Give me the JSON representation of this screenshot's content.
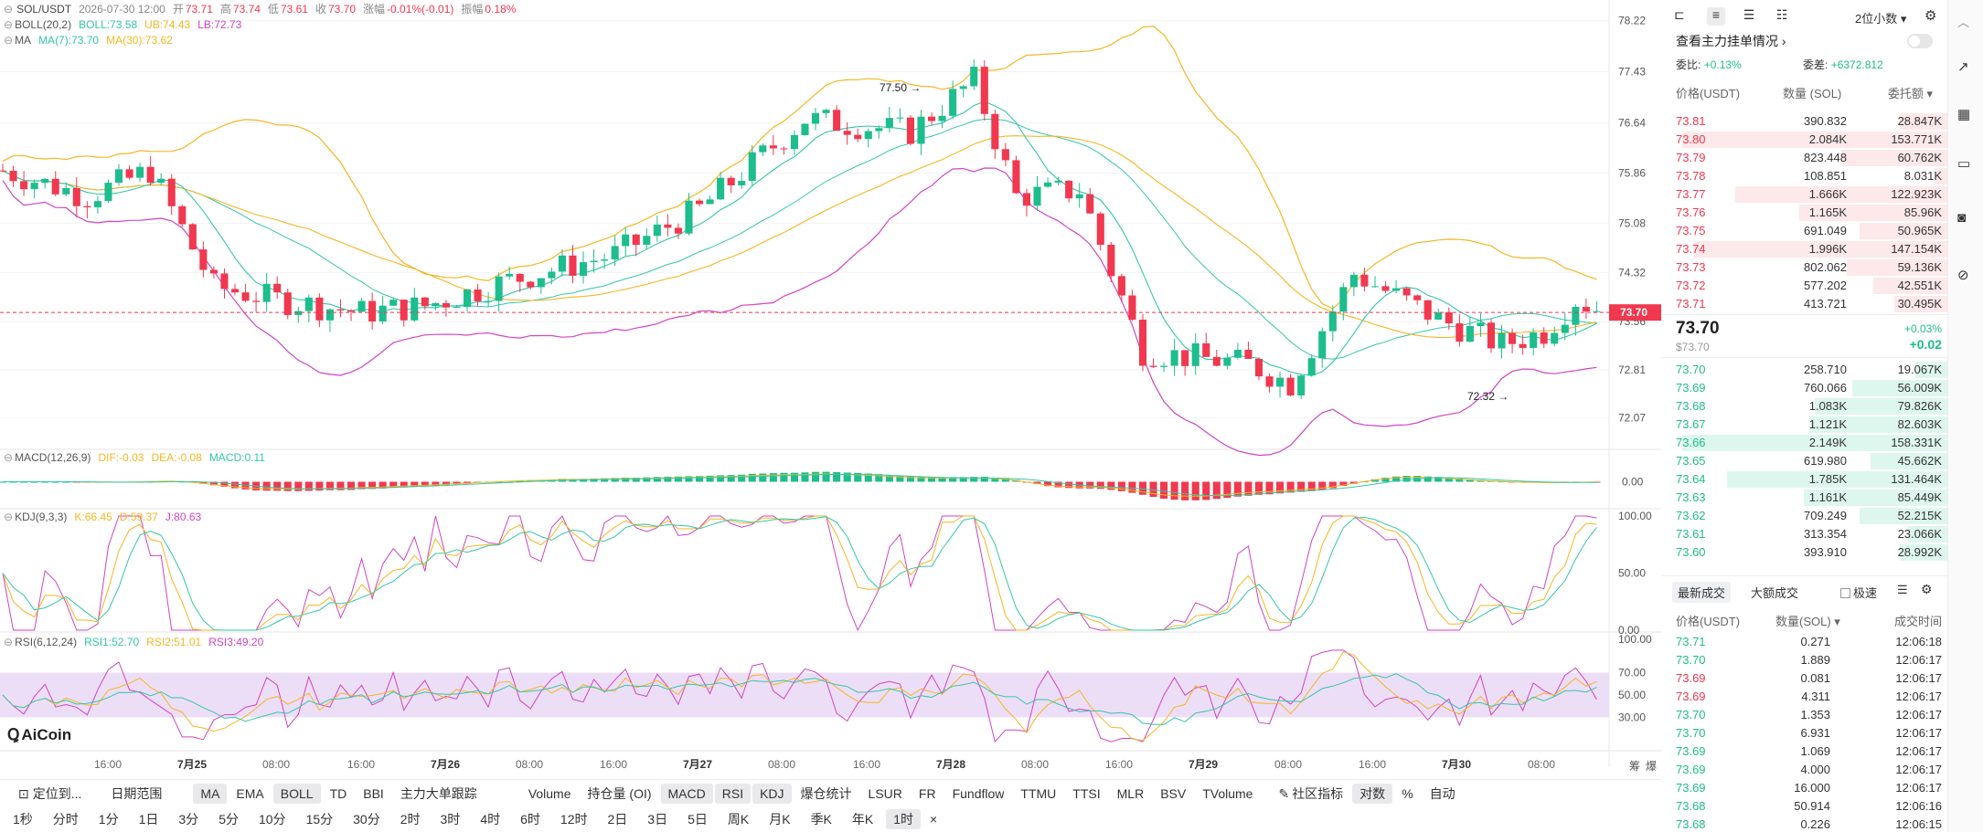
{
  "header": {
    "symbol": "SOL/USDT",
    "time": "2026-07-30 12:00",
    "open_label": "开",
    "open": "73.71",
    "high_label": "高",
    "high": "73.74",
    "low_label": "低",
    "low": "73.61",
    "close_label": "收",
    "close": "73.70",
    "chg_label": "涨幅",
    "chg": "-0.01%(-0.01)",
    "amp_label": "振幅",
    "amp": "0.18%"
  },
  "indicators": {
    "boll": {
      "name": "BOLL(20,2)",
      "boll": "BOLL:73.58",
      "ub": "UB:74.43",
      "lb": "LB:72.73"
    },
    "ma": {
      "name": "MA",
      "ma7": "MA(7):73.70",
      "ma30": "MA(30):73.62"
    },
    "macd": {
      "name": "MACD(12,26,9)",
      "dif": "DIF:-0.03",
      "dea": "DEA:-0.08",
      "macd": "MACD:0.11"
    },
    "kdj": {
      "name": "KDJ(9,3,3)",
      "k": "K:66.45",
      "d": "D:59.37",
      "j": "J:80.63"
    },
    "rsi": {
      "name": "RSI(6,12,24)",
      "r1": "RSI1:52.70",
      "r2": "RSI2:51.01",
      "r3": "RSI3:49.20"
    }
  },
  "price_axis": [
    "78.22",
    "77.43",
    "76.64",
    "75.86",
    "75.08",
    "74.32",
    "73.56",
    "72.81",
    "72.07"
  ],
  "current_price_tag": "73.70",
  "annotations": {
    "high": "77.50",
    "low": "72.32"
  },
  "macd_axis": [
    "0.00"
  ],
  "kdj_axis": [
    "100.00",
    "50.00",
    "0.00"
  ],
  "rsi_axis": [
    "100.00",
    "70.00",
    "50.00",
    "30.00"
  ],
  "time_axis": [
    "16:00",
    "7月25",
    "08:00",
    "16:00",
    "7月26",
    "08:00",
    "16:00",
    "7月27",
    "08:00",
    "16:00",
    "7月28",
    "08:00",
    "16:00",
    "7月29",
    "08:00",
    "16:00",
    "7月30",
    "08:00"
  ],
  "axis_corner": [
    "筹",
    "爆"
  ],
  "watermark": "AiCoin",
  "toolbar1": {
    "locate": "定位到...",
    "daterange": "日期范围",
    "items": [
      "MA",
      "EMA",
      "BOLL",
      "TD",
      "BBI",
      "主力大单跟踪",
      "Volume",
      "持仓量 (OI)",
      "MACD",
      "RSI",
      "KDJ",
      "爆仓统计",
      "LSUR",
      "FR",
      "Fundflow",
      "TTMU",
      "TTSI",
      "MLR",
      "BSV",
      "TVolume"
    ],
    "selected": [
      "MA",
      "BOLL",
      "MACD",
      "RSI",
      "KDJ"
    ],
    "community": "社区指标",
    "log": "对数",
    "pct": "%",
    "auto": "自动"
  },
  "toolbar2": {
    "items": [
      "1秒",
      "分时",
      "1分",
      "1日",
      "3分",
      "5分",
      "10分",
      "15分",
      "30分",
      "2时",
      "3时",
      "4时",
      "6时",
      "12时",
      "2日",
      "3日",
      "5日",
      "周K",
      "月K",
      "季K",
      "年K",
      "1时"
    ],
    "selected": "1时",
    "close": "×"
  },
  "orderbook": {
    "decimals": "2位小数",
    "main_orders": "查看主力挂单情况",
    "ratio_label": "委比:",
    "ratio": "+0.13%",
    "diff_label": "委差:",
    "diff": "+6372.812",
    "headers": [
      "价格(USDT)",
      "数量 (SOL)",
      "委托额"
    ],
    "asks": [
      [
        "73.81",
        "390.832",
        "28.847K",
        0.18
      ],
      [
        "73.80",
        "2.084K",
        "153.771K",
        1.0
      ],
      [
        "73.79",
        "823.448",
        "60.762K",
        0.4
      ],
      [
        "73.78",
        "108.851",
        "8.031K",
        0.05
      ],
      [
        "73.77",
        "1.666K",
        "122.923K",
        0.8
      ],
      [
        "73.76",
        "1.165K",
        "85.96K",
        0.56
      ],
      [
        "73.75",
        "691.049",
        "50.965K",
        0.33
      ],
      [
        "73.74",
        "1.996K",
        "147.154K",
        0.96
      ],
      [
        "73.73",
        "802.062",
        "59.136K",
        0.38
      ],
      [
        "73.72",
        "577.202",
        "42.551K",
        0.28
      ],
      [
        "73.71",
        "413.721",
        "30.495K",
        0.2
      ]
    ],
    "last_price": "73.70",
    "last_sub": "$73.70",
    "last_chg": "+0.03%",
    "last_abs": "+0.02",
    "bids": [
      [
        "73.70",
        "258.710",
        "19.067K",
        0.12
      ],
      [
        "73.69",
        "760.066",
        "56.009K",
        0.36
      ],
      [
        "73.68",
        "1.083K",
        "79.826K",
        0.5
      ],
      [
        "73.67",
        "1.121K",
        "82.603K",
        0.52
      ],
      [
        "73.66",
        "2.149K",
        "158.331K",
        1.0
      ],
      [
        "73.65",
        "619.980",
        "45.662K",
        0.29
      ],
      [
        "73.64",
        "1.785K",
        "131.464K",
        0.83
      ],
      [
        "73.63",
        "1.161K",
        "85.449K",
        0.54
      ],
      [
        "73.62",
        "709.249",
        "52.215K",
        0.33
      ],
      [
        "73.61",
        "313.354",
        "23.066K",
        0.15
      ],
      [
        "73.60",
        "393.910",
        "28.992K",
        0.18
      ]
    ]
  },
  "trades": {
    "tabs": [
      "最新成交",
      "大额成交"
    ],
    "speed_label": "极速",
    "headers": [
      "价格(USDT)",
      "数量(SOL)",
      "成交时间"
    ],
    "rows": [
      [
        "73.71",
        "0.271",
        "12:06:18",
        "g"
      ],
      [
        "73.70",
        "1.889",
        "12:06:17",
        "g"
      ],
      [
        "73.69",
        "0.081",
        "12:06:17",
        "r"
      ],
      [
        "73.69",
        "4.311",
        "12:06:17",
        "r"
      ],
      [
        "73.70",
        "1.353",
        "12:06:17",
        "g"
      ],
      [
        "73.70",
        "6.931",
        "12:06:17",
        "g"
      ],
      [
        "73.69",
        "1.069",
        "12:06:17",
        "g"
      ],
      [
        "73.69",
        "4.000",
        "12:06:17",
        "g"
      ],
      [
        "73.69",
        "16.000",
        "12:06:17",
        "g"
      ],
      [
        "73.68",
        "50.914",
        "12:06:16",
        "g"
      ],
      [
        "73.68",
        "0.226",
        "12:06:15",
        "g"
      ]
    ]
  },
  "colors": {
    "up": "#1dbd8d",
    "down": "#f0384f",
    "ma7": "#34c7a9",
    "ma30": "#f5b623",
    "ub": "#f5b623",
    "lb": "#d044c4",
    "boll": "#34c7a9",
    "dif": "#f5b623",
    "dea": "#34c7a9",
    "k": "#f5b623",
    "d": "#34c7a9",
    "j": "#d044c4",
    "rsi1": "#d044c4",
    "rsi2": "#f5b623",
    "rsi3": "#34c7a9"
  }
}
